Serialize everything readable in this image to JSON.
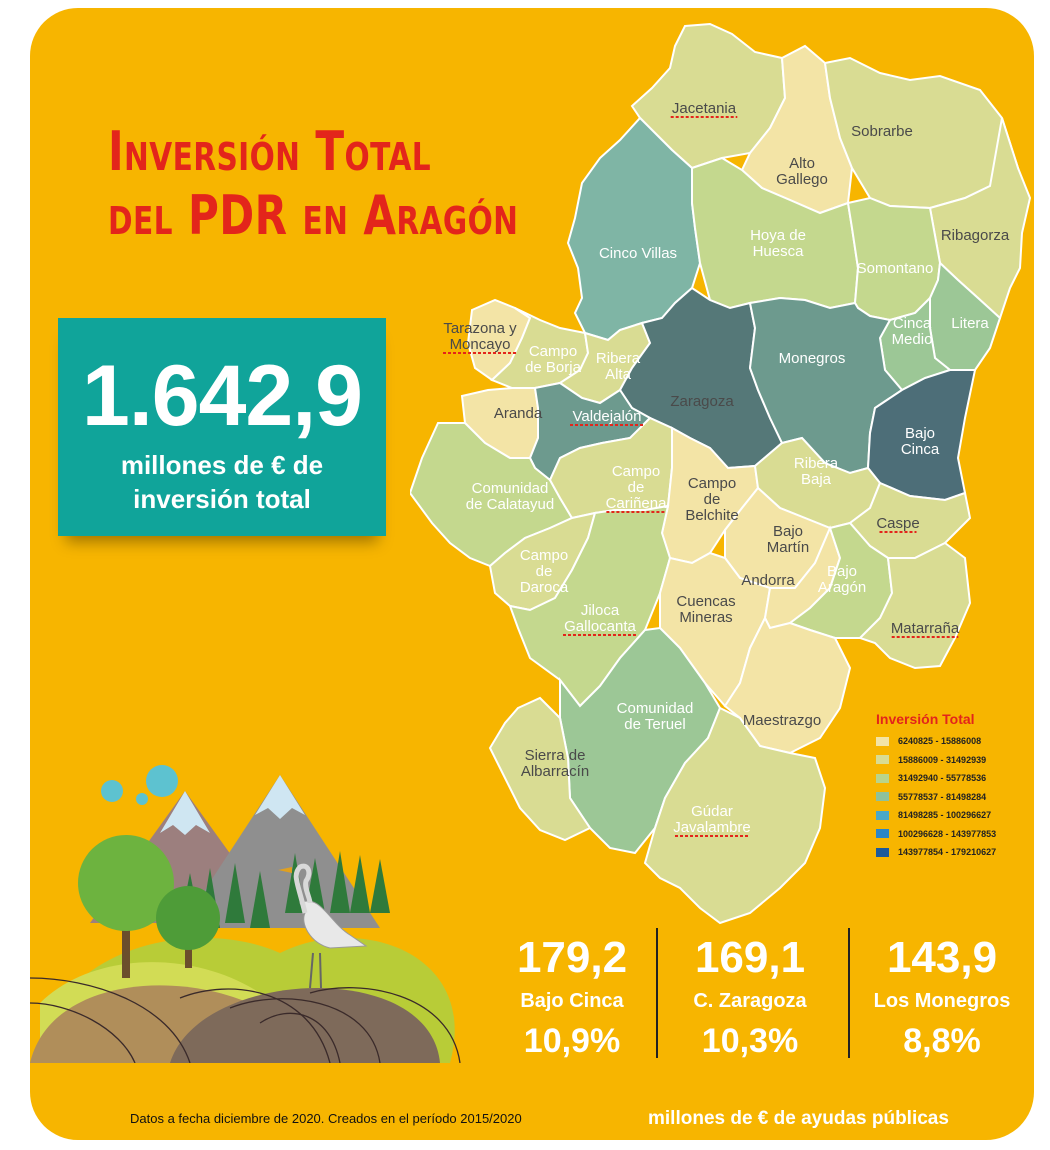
{
  "title": {
    "line1": "Inversión Total",
    "line2": "del PDR en Aragón"
  },
  "total": {
    "value": "1.642,9",
    "caption_line1": "millones de € de",
    "caption_line2": "inversión total"
  },
  "legend": {
    "title": "Inversión Total",
    "items": [
      {
        "label": "6240825 - 15886008",
        "color": "#F3E4A6"
      },
      {
        "label": "15886009 - 31492939",
        "color": "#D9DC93"
      },
      {
        "label": "31492940 - 55778536",
        "color": "#B9D48B"
      },
      {
        "label": "55778537 - 81498284",
        "color": "#8EC19B"
      },
      {
        "label": "81498285 - 100296627",
        "color": "#4BA8C8"
      },
      {
        "label": "100296628 - 143977853",
        "color": "#2B86C6"
      },
      {
        "label": "143977854 - 179210627",
        "color": "#1C5A9C"
      }
    ]
  },
  "regions": [
    {
      "id": "jacetania",
      "name": "Jacetania",
      "color": "#D9DC93"
    },
    {
      "id": "alto-gallego",
      "name": "Alto Gallego",
      "color": "#F3E4A6"
    },
    {
      "id": "sobrarbe",
      "name": "Sobrarbe",
      "color": "#D9DC93"
    },
    {
      "id": "ribagorza",
      "name": "Ribagorza",
      "color": "#D9DC93"
    },
    {
      "id": "cinco-villas",
      "name": "Cinco Villas",
      "color": "#7FB5A5"
    },
    {
      "id": "hoya-de-huesca",
      "name": "Hoya de Huesca",
      "color": "#C4D88E"
    },
    {
      "id": "somontano",
      "name": "Somontano",
      "color": "#C4D88E"
    },
    {
      "id": "litera",
      "name": "Litera",
      "color": "#9CC796"
    },
    {
      "id": "cinca-medio",
      "name": "Cinca Medio",
      "color": "#9CC796"
    },
    {
      "id": "tarazona-y-moncayo",
      "name": "Tarazona y Moncayo",
      "color": "#F3E4A6"
    },
    {
      "id": "campo-de-borja",
      "name": "Campo de Borja",
      "color": "#D9DC93"
    },
    {
      "id": "ribera-alta",
      "name": "Ribera Alta",
      "color": "#D9DC93"
    },
    {
      "id": "zaragoza",
      "name": "Zaragoza",
      "color": "#557878"
    },
    {
      "id": "monegros",
      "name": "Monegros",
      "color": "#6D9A8E"
    },
    {
      "id": "bajo-cinca",
      "name": "Bajo Cinca",
      "color": "#4D6E78"
    },
    {
      "id": "aranda",
      "name": "Aranda",
      "color": "#F3E4A6"
    },
    {
      "id": "valdejalon",
      "name": "Valdejalón",
      "color": "#6D9A8E"
    },
    {
      "id": "comunidad-de-calatayud",
      "name": "Comunidad de Calatayud",
      "color": "#C4D88E"
    },
    {
      "id": "campo-de-carinena",
      "name": "Campo de Cariñena",
      "color": "#D9DC93"
    },
    {
      "id": "campo-de-belchite",
      "name": "Campo de Belchite",
      "color": "#F3E4A6"
    },
    {
      "id": "ribera-baja",
      "name": "Ribera Baja",
      "color": "#D9DC93"
    },
    {
      "id": "caspe",
      "name": "Caspe",
      "color": "#D9DC93"
    },
    {
      "id": "bajo-martin",
      "name": "Bajo Martín",
      "color": "#F3E4A6"
    },
    {
      "id": "campo-de-daroca",
      "name": "Campo de Daroca",
      "color": "#D9DC93"
    },
    {
      "id": "jiloca-gallocanta",
      "name": "Jiloca Gallocanta",
      "color": "#C4D88E"
    },
    {
      "id": "cuencas-mineras",
      "name": "Cuencas Mineras",
      "color": "#F3E4A6"
    },
    {
      "id": "andorra",
      "name": "Andorra",
      "color": "#F3E4A6"
    },
    {
      "id": "bajo-aragon",
      "name": "Bajo Aragón",
      "color": "#C4D88E"
    },
    {
      "id": "matarrana",
      "name": "Matarraña",
      "color": "#D9DC93"
    },
    {
      "id": "comunidad-de-teruel",
      "name": "Comunidad de Teruel",
      "color": "#9CC796"
    },
    {
      "id": "maestrazgo",
      "name": "Maestrazgo",
      "color": "#F3E4A6"
    },
    {
      "id": "sierra-de-albarracin",
      "name": "Sierra de Albarracín",
      "color": "#D9DC93"
    },
    {
      "id": "gudar-javalambre",
      "name": "Gúdar Javalambre",
      "color": "#D9DC93"
    }
  ],
  "stats": [
    {
      "value": "179,2",
      "name": "Bajo Cinca",
      "pct": "10,9%"
    },
    {
      "value": "169,1",
      "name": "C. Zaragoza",
      "pct": "10,3%"
    },
    {
      "value": "143,9",
      "name": "Los Monegros",
      "pct": "8,8%"
    }
  ],
  "footnote": "Datos a fecha diciembre de 2020. Creados en el período 2015/2020",
  "footer_unit": "millones de € de ayudas públicas"
}
